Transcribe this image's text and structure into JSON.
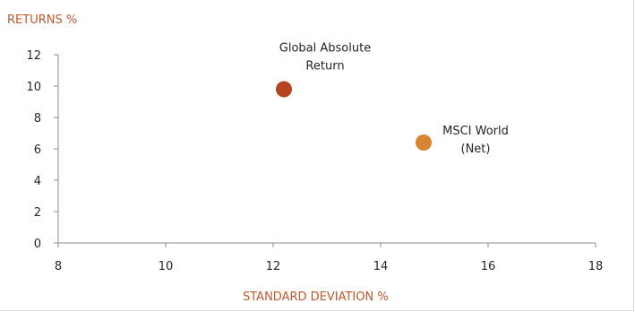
{
  "chart_data": {
    "type": "scatter",
    "ylabel": "RETURNS %",
    "xlabel": "STANDARD DEVIATION %",
    "xlim": [
      8,
      18
    ],
    "ylim": [
      0,
      12
    ],
    "x_ticks": [
      "8",
      "10",
      "12",
      "14",
      "16",
      "18"
    ],
    "y_ticks": [
      "0",
      "2",
      "4",
      "6",
      "8",
      "10",
      "12"
    ],
    "grid": false,
    "legend": "none",
    "points": [
      {
        "label": [
          "Global Absolute",
          "Return"
        ],
        "x": 12.2,
        "y": 9.8,
        "color": "#b5451f"
      },
      {
        "label": [
          "MSCI World",
          "(Net)"
        ],
        "x": 14.8,
        "y": 6.4,
        "color": "#d98530"
      }
    ]
  }
}
